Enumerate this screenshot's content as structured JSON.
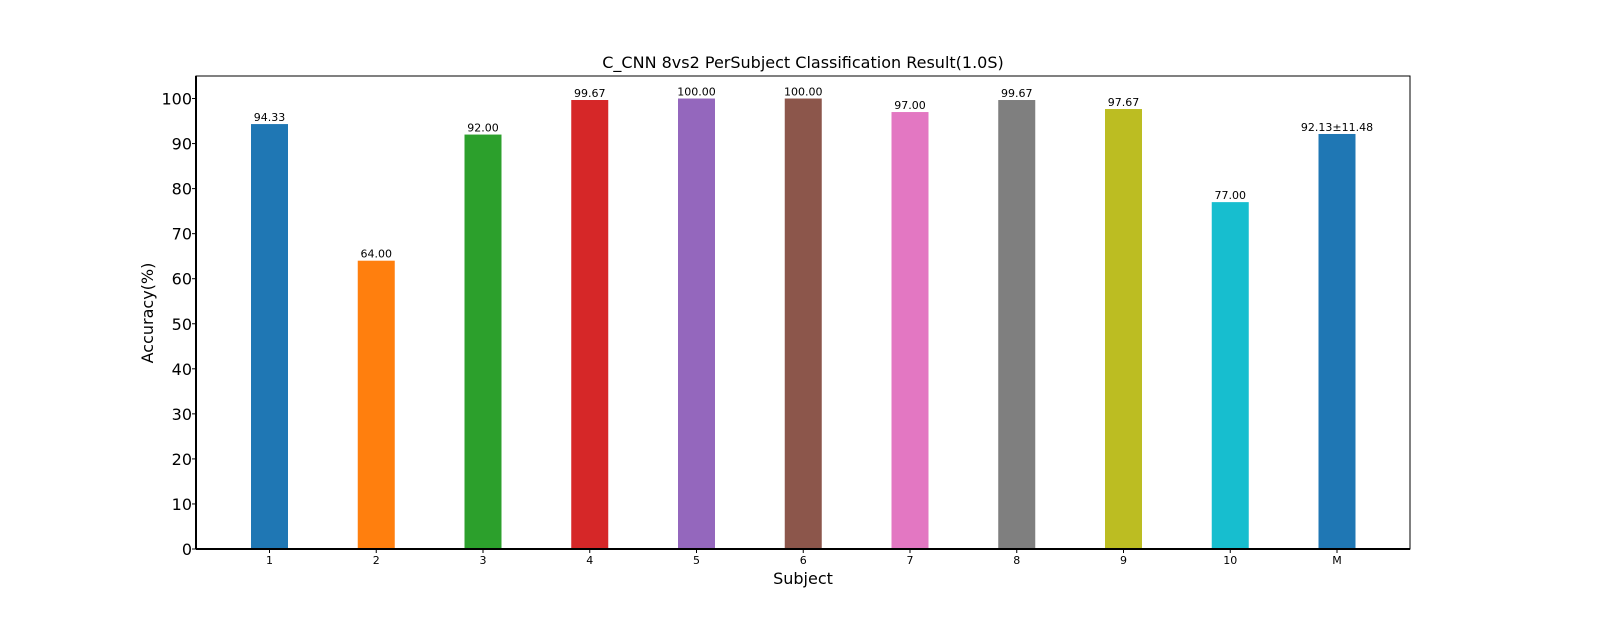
{
  "chart_data": {
    "type": "bar",
    "title": "C_CNN 8vs2 PerSubject Classification Result(1.0S)",
    "xlabel": "Subject",
    "ylabel": "Accuracy(%)",
    "ylim": [
      0,
      105
    ],
    "yticks": [
      "0",
      "10",
      "20",
      "30",
      "40",
      "50",
      "60",
      "70",
      "80",
      "90",
      "100"
    ],
    "categories": [
      "1",
      "2",
      "3",
      "4",
      "5",
      "6",
      "7",
      "8",
      "9",
      "10",
      "M"
    ],
    "values": [
      94.33,
      64.0,
      92.0,
      99.67,
      100.0,
      100.0,
      97.0,
      99.67,
      97.67,
      77.0,
      92.13
    ],
    "data_labels": [
      "94.33",
      "64.00",
      "92.00",
      "99.67",
      "100.00",
      "100.00",
      "97.00",
      "99.67",
      "97.67",
      "77.00",
      "92.13±11.48"
    ],
    "colors": [
      "#1f77b4",
      "#ff7f0e",
      "#2ca02c",
      "#d62728",
      "#9467bd",
      "#8c564b",
      "#e377c2",
      "#7f7f7f",
      "#bcbd22",
      "#17becf",
      "#1f77b4"
    ],
    "label_colors": [
      "#000000",
      "#000000",
      "#000000",
      "#000000",
      "#000000",
      "#000000",
      "#000000",
      "#000000",
      "#000000",
      "#000000",
      "#ff0000"
    ],
    "grid": false,
    "legend": "none"
  }
}
